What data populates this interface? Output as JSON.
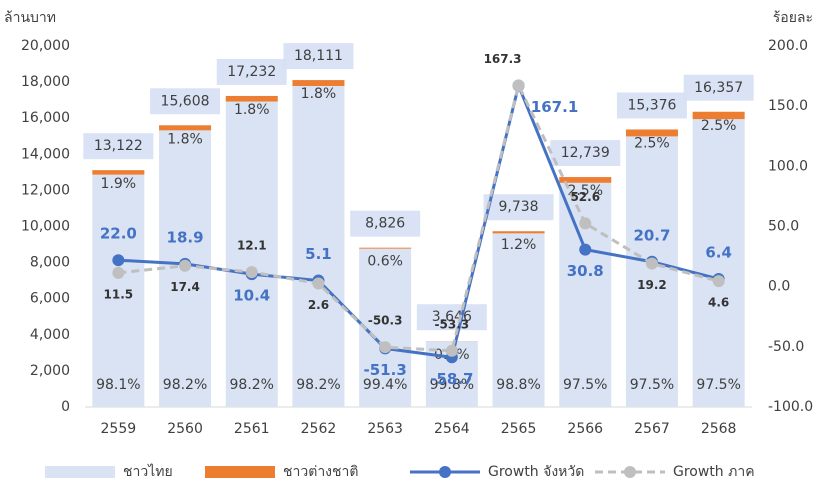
{
  "chart_data": {
    "type": "bar_line",
    "y_label": "ล้านบาท",
    "y2_label": "ร้อยละ",
    "categories": [
      "2559",
      "2560",
      "2561",
      "2562",
      "2563",
      "2564",
      "2565",
      "2566",
      "2567",
      "2568"
    ],
    "series": [
      {
        "name": "ชาวไทย",
        "type": "bar",
        "color": "#dae3f3",
        "values": [
          12873,
          15327,
          16922,
          17785,
          8773,
          3639,
          9621,
          12421,
          14992,
          15948
        ],
        "labels": [
          "98.1%",
          "98.2%",
          "98.2%",
          "98.2%",
          "99.4%",
          "99.8%",
          "98.8%",
          "97.5%",
          "97.5%",
          "97.5%"
        ]
      },
      {
        "name": "ชาวต่างชาติ",
        "type": "bar",
        "color": "#ed7d31",
        "values": [
          249,
          281,
          310,
          326,
          53,
          7,
          117,
          318,
          384,
          409
        ],
        "labels": [
          "1.9%",
          "1.8%",
          "1.8%",
          "1.8%",
          "0.6%",
          "0.2%",
          "1.2%",
          "2.5%",
          "2.5%",
          "2.5%"
        ]
      },
      {
        "name": "Growth จังหวัด",
        "type": "line",
        "axis": "y2",
        "color": "#4472c4",
        "values": [
          22.0,
          18.9,
          10.4,
          5.1,
          -51.3,
          -58.7,
          167.1,
          30.8,
          20.7,
          6.4
        ],
        "value_labels": [
          "22.0",
          "18.9",
          "10.4",
          "5.1",
          "-51.3",
          "-58.7",
          "167.1",
          "30.8",
          "20.7",
          "6.4"
        ]
      },
      {
        "name": "Growth ภาค",
        "type": "line",
        "axis": "y2",
        "color": "#bfbfbf",
        "dashed": true,
        "values": [
          11.5,
          17.4,
          12.1,
          2.6,
          -50.3,
          -53.3,
          167.3,
          52.6,
          19.2,
          4.6
        ],
        "value_labels": [
          "11.5",
          "17.4",
          "12.1",
          "2.6",
          "-50.3",
          "-53.3",
          "167.3",
          "52.6",
          "19.2",
          "4.6"
        ]
      }
    ],
    "total_labels": [
      "13,122",
      "15,608",
      "17,232",
      "18,111",
      "8,826",
      "3,646",
      "9,738",
      "12,739",
      "15,376",
      "16,357"
    ],
    "ylim": [
      0,
      20000
    ],
    "yticks": [
      0,
      {
        "value": 2000,
        "label": "2,000"
      },
      {
        "value": 4000,
        "label": "4,000"
      },
      {
        "value": 6000,
        "label": "6,000"
      },
      {
        "value": 8000,
        "label": "8,000"
      },
      {
        "value": 10000,
        "label": "10,000"
      },
      {
        "value": 12000,
        "label": "12,000"
      },
      {
        "value": 14000,
        "label": "14,000"
      },
      {
        "value": 16000,
        "label": "16,000"
      },
      {
        "value": 18000,
        "label": "18,000"
      },
      {
        "value": 20000,
        "label": "20,000"
      }
    ],
    "y2lim": [
      -100,
      200
    ],
    "y2ticks": [
      {
        "value": -100,
        "label": "-100.0"
      },
      {
        "value": -50,
        "label": "-50.0"
      },
      {
        "value": 0,
        "label": "0.0"
      },
      {
        "value": 50,
        "label": "50.0"
      },
      {
        "value": 100,
        "label": "100.0"
      },
      {
        "value": 150,
        "label": "150.0"
      },
      {
        "value": 200,
        "label": "200.0"
      }
    ],
    "legend": "bottom"
  }
}
